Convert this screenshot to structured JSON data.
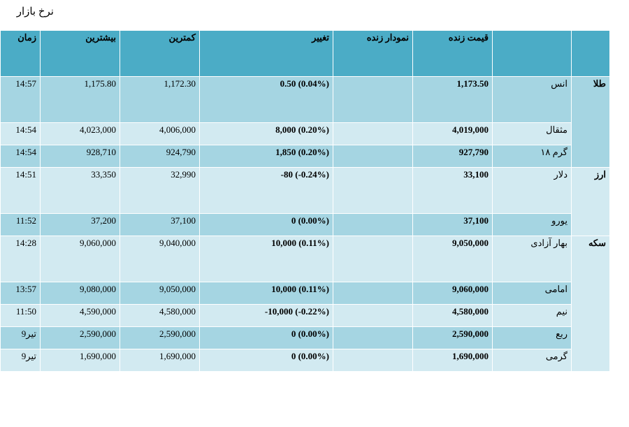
{
  "page_title": "نرخ بازار",
  "headers": {
    "category": "",
    "name": "",
    "live_price": "قیمت زنده",
    "live_chart": "نمودار زنده",
    "change": "تغییر",
    "low": "کمترین",
    "high": "بیشترین",
    "time": "زمان"
  },
  "categories": {
    "gold": "طلا",
    "currency": "ارز",
    "coin": "سکه"
  },
  "rows": [
    {
      "name": "انس",
      "price": "1,173.50",
      "chart": "",
      "change": "0.50 (0.04%)",
      "low": "1,172.30",
      "high": "1,175.80",
      "time": "14:57"
    },
    {
      "name": "مثقال",
      "price": "4,019,000",
      "chart": "",
      "change": "8,000 (0.20%)",
      "low": "4,006,000",
      "high": "4,023,000",
      "time": "14:54"
    },
    {
      "name": "گرم ۱۸",
      "price": "927,790",
      "chart": "",
      "change": "1,850 (0.20%)",
      "low": "924,790",
      "high": "928,710",
      "time": "14:54"
    },
    {
      "name": "دلار",
      "price": "33,100",
      "chart": "",
      "change": "-80 (-0.24%)",
      "low": "32,990",
      "high": "33,350",
      "time": "14:51"
    },
    {
      "name": "یورو",
      "price": "37,100",
      "chart": "",
      "change": "0 (0.00%)",
      "low": "37,100",
      "high": "37,200",
      "time": "11:52"
    },
    {
      "name": "بهار آزادی",
      "price": "9,050,000",
      "chart": "",
      "change": "10,000 (0.11%)",
      "low": "9,040,000",
      "high": "9,060,000",
      "time": "14:28"
    },
    {
      "name": "امامی",
      "price": "9,060,000",
      "chart": "",
      "change": "10,000 (0.11%)",
      "low": "9,050,000",
      "high": "9,080,000",
      "time": "13:57"
    },
    {
      "name": "نیم",
      "price": "4,580,000",
      "chart": "",
      "change": "-10,000 (-0.22%)",
      "low": "4,580,000",
      "high": "4,590,000",
      "time": "11:50"
    },
    {
      "name": "ربع",
      "price": "2,590,000",
      "chart": "",
      "change": "0 (0.00%)",
      "low": "2,590,000",
      "high": "2,590,000",
      "time": "9تیر"
    },
    {
      "name": "گرمی",
      "price": "1,690,000",
      "chart": "",
      "change": "0 (0.00%)",
      "low": "1,690,000",
      "high": "1,690,000",
      "time": "9تیر"
    }
  ]
}
